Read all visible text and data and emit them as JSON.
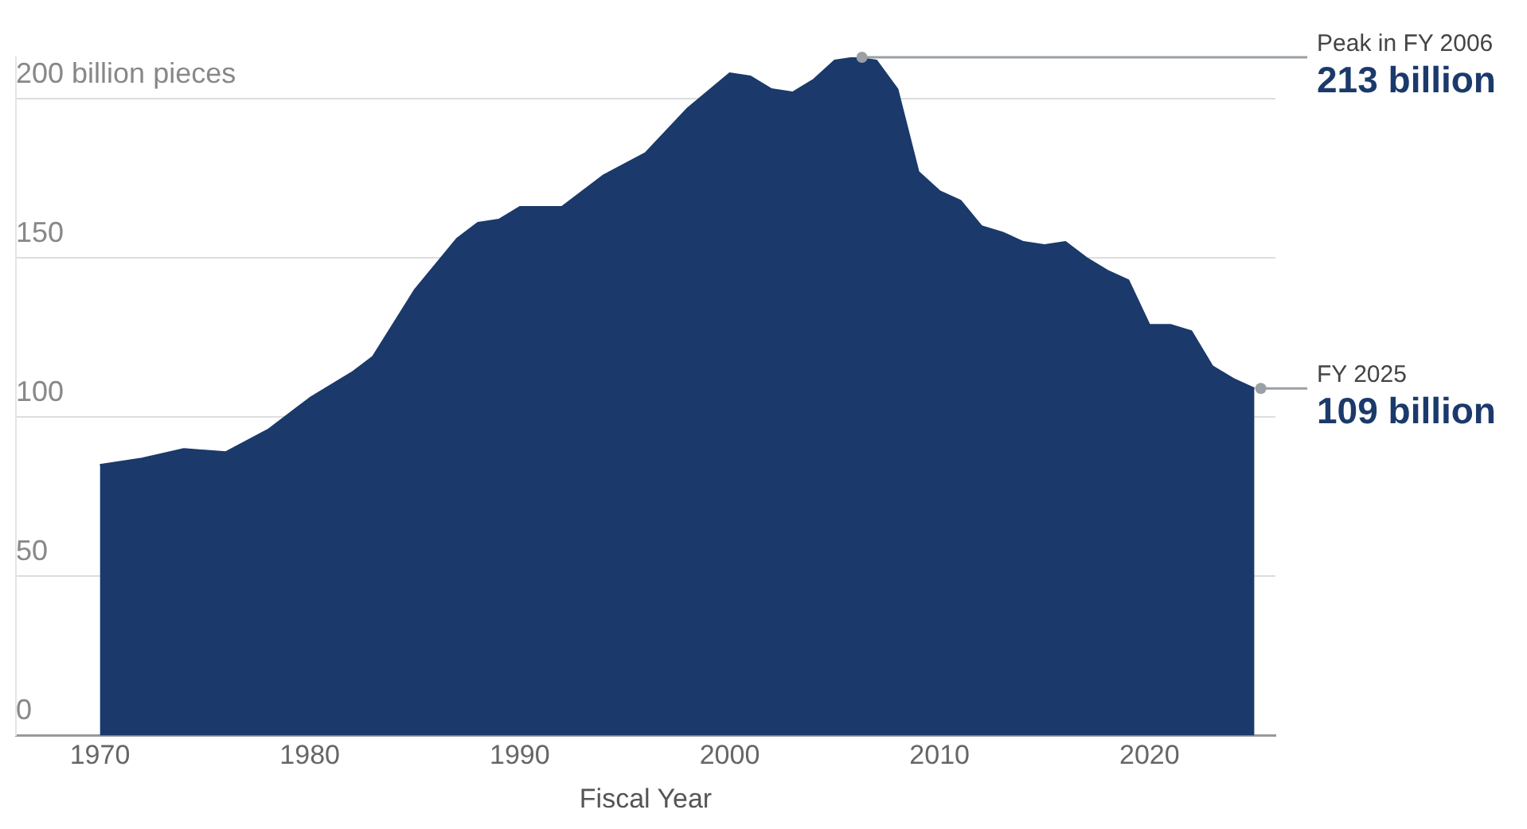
{
  "chart_data": {
    "type": "area",
    "xlabel": "Fiscal Year",
    "x": [
      1970,
      1972,
      1974,
      1976,
      1978,
      1980,
      1982,
      1983,
      1985,
      1987,
      1988,
      1989,
      1990,
      1992,
      1994,
      1996,
      1998,
      2000,
      2001,
      2002,
      2003,
      2004,
      2005,
      2006,
      2007,
      2008,
      2009,
      2010,
      2011,
      2012,
      2013,
      2014,
      2015,
      2016,
      2017,
      2018,
      2019,
      2020,
      2021,
      2022,
      2023,
      2024,
      2025
    ],
    "series": [
      {
        "color": "#1b3a6b",
        "values": [
          85,
          87,
          90,
          89,
          96,
          106,
          114,
          119,
          140,
          156,
          161,
          162,
          166,
          166,
          176,
          183,
          197,
          208,
          207,
          203,
          202,
          206,
          212,
          213,
          212,
          203,
          177,
          171,
          168,
          160,
          158,
          155,
          154,
          155,
          150,
          146,
          143,
          129,
          129,
          127,
          116,
          112,
          109
        ]
      }
    ],
    "xlim": [
      1966,
      2026
    ],
    "xticks": [
      1970,
      1980,
      1990,
      2000,
      2010,
      2020
    ],
    "ylim": [
      0,
      213
    ],
    "yticks": [
      0,
      50,
      100,
      150,
      {
        "value": 200,
        "label": "200 billion pieces"
      }
    ],
    "grid": "y",
    "legend": false,
    "annotations": [
      {
        "text": "Peak in FY 2006\n213 billion",
        "x": 2006,
        "y": 213
      },
      {
        "text": "FY 2025\n109 billion",
        "x": 2025,
        "y": 109
      }
    ]
  }
}
